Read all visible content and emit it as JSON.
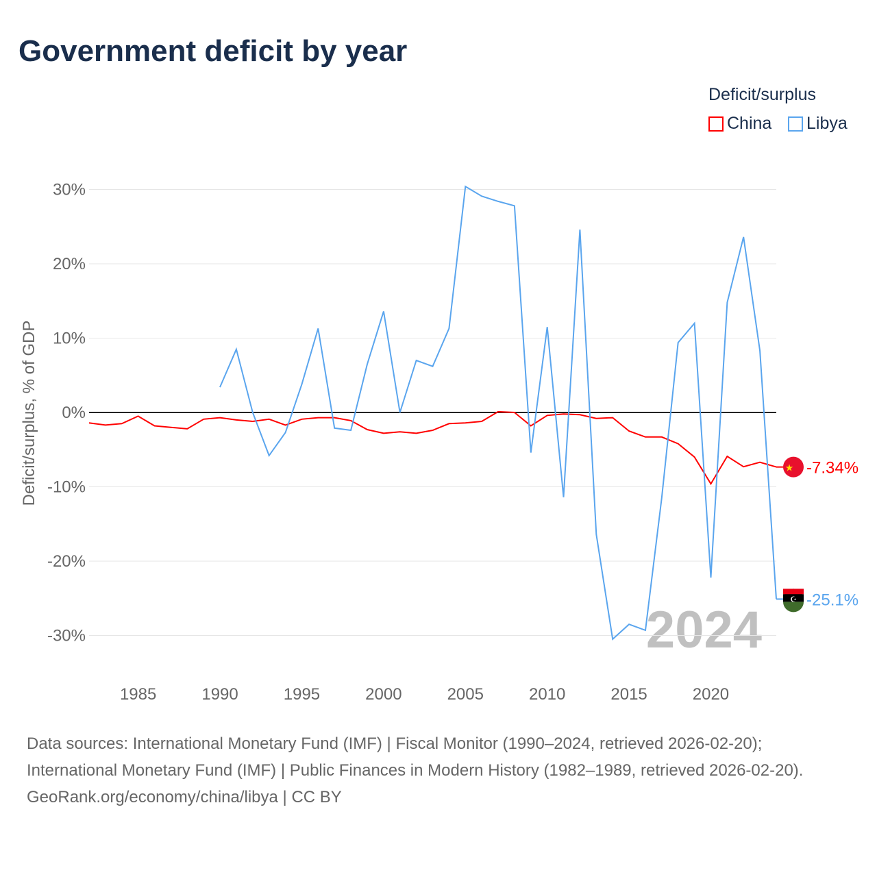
{
  "title": "Government deficit by year",
  "legend": {
    "title": "Deficit/surplus",
    "items": [
      {
        "name": "China",
        "color": "#ff0000"
      },
      {
        "name": "Libya",
        "color": "#5aa5ee"
      }
    ]
  },
  "chart_data": {
    "type": "line",
    "title": "Government deficit by year",
    "xlabel": "",
    "ylabel": "Deficit/surplus, % of GDP",
    "xlim": [
      1982,
      2024
    ],
    "ylim": [
      -35,
      32
    ],
    "yticks": [
      30,
      20,
      10,
      0,
      -10,
      -20,
      -30
    ],
    "ytick_labels": [
      "30%",
      "20%",
      "10%",
      "0%",
      "-10%",
      "-20%",
      "-30%"
    ],
    "xticks": [
      1985,
      1990,
      1995,
      2000,
      2005,
      2010,
      2015,
      2020
    ],
    "xtick_labels": [
      "1985",
      "1990",
      "1995",
      "2000",
      "2005",
      "2010",
      "2015",
      "2020"
    ],
    "year_watermark": "2024",
    "series": [
      {
        "name": "China",
        "color": "#ff0000",
        "end_label": "-7.34%",
        "x_start": 1982,
        "values": [
          -1.4,
          -1.7,
          -1.5,
          -0.5,
          -1.8,
          -2.0,
          -2.2,
          -0.9,
          -0.7,
          -1.0,
          -1.2,
          -0.9,
          -1.7,
          -0.9,
          -0.7,
          -0.7,
          -1.1,
          -2.3,
          -2.8,
          -2.6,
          -2.8,
          -2.4,
          -1.5,
          -1.4,
          -1.2,
          0.1,
          0.0,
          -1.8,
          -0.4,
          -0.2,
          -0.3,
          -0.8,
          -0.7,
          -2.5,
          -3.3,
          -3.3,
          -4.2,
          -6.0,
          -9.6,
          -5.9,
          -7.3,
          -6.7,
          -7.34
        ]
      },
      {
        "name": "Libya",
        "color": "#5aa5ee",
        "end_label": "-25.1%",
        "x_start": 1990,
        "values": [
          3.4,
          8.5,
          0.0,
          -5.8,
          -2.7,
          3.8,
          11.3,
          -2.1,
          -2.4,
          6.5,
          13.6,
          0.0,
          7.0,
          6.2,
          11.3,
          30.4,
          29.1,
          28.4,
          27.8,
          -5.4,
          11.5,
          -11.4,
          24.6,
          -16.4,
          -30.5,
          -28.5,
          -29.3,
          -11.5,
          9.4,
          12.0,
          -22.2,
          14.8,
          23.6,
          8.3,
          -25.1
        ]
      }
    ]
  },
  "footer": {
    "sources": "Data sources: International Monetary Fund (IMF) | Fiscal Monitor (1990–2024, retrieved 2026-02-20); International Monetary Fund (IMF) | Public Finances in Modern History (1982–1989, retrieved 2026-02-20).",
    "credit": "GeoRank.org/economy/china/libya | CC BY"
  }
}
